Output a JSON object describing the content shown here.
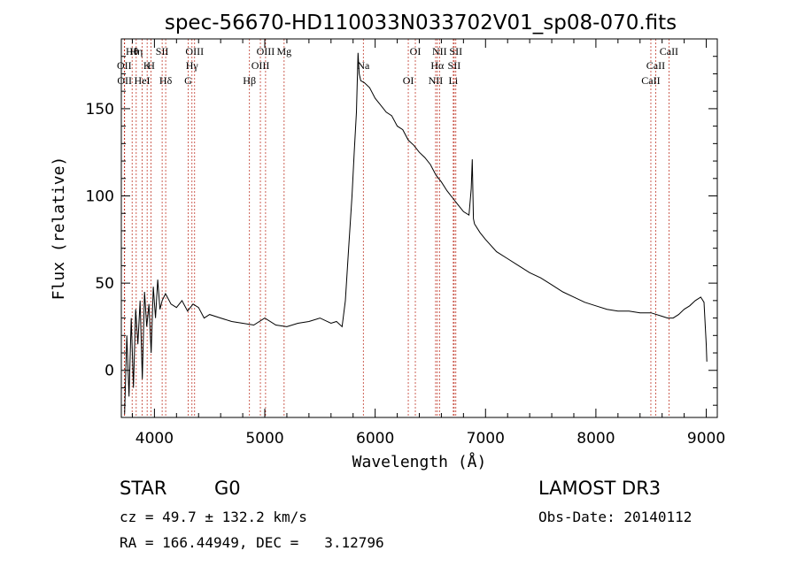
{
  "chart_data": {
    "type": "line",
    "title": "spec-56670-HD110033N033702V01_sp08-070.fits",
    "xlabel": "Wavelength (Å)",
    "ylabel": "Flux (relative)",
    "xlim": [
      3700,
      9100
    ],
    "ylim": [
      -27,
      190
    ],
    "x_ticks": [
      4000,
      5000,
      6000,
      7000,
      8000,
      9000
    ],
    "y_ticks": [
      0,
      50,
      100,
      150
    ],
    "series": [
      {
        "name": "flux",
        "x": [
          3730,
          3750,
          3770,
          3790,
          3810,
          3830,
          3850,
          3870,
          3890,
          3910,
          3930,
          3950,
          3970,
          3990,
          4010,
          4030,
          4050,
          4070,
          4100,
          4150,
          4200,
          4250,
          4300,
          4350,
          4400,
          4450,
          4500,
          4600,
          4700,
          4800,
          4900,
          5000,
          5100,
          5200,
          5300,
          5400,
          5500,
          5600,
          5650,
          5700,
          5730,
          5760,
          5790,
          5810,
          5830,
          5845,
          5855,
          5870,
          5900,
          5950,
          6000,
          6050,
          6100,
          6150,
          6200,
          6250,
          6300,
          6350,
          6400,
          6450,
          6500,
          6550,
          6600,
          6650,
          6700,
          6750,
          6800,
          6850,
          6870,
          6880,
          6890,
          6900,
          6950,
          7000,
          7100,
          7200,
          7300,
          7400,
          7500,
          7600,
          7700,
          7800,
          7900,
          8000,
          8100,
          8200,
          8300,
          8400,
          8500,
          8600,
          8650,
          8700,
          8750,
          8800,
          8850,
          8900,
          8950,
          8980,
          9000,
          9005
        ],
        "y": [
          -25,
          20,
          -15,
          30,
          -10,
          35,
          15,
          40,
          -5,
          45,
          25,
          38,
          10,
          48,
          30,
          52,
          35,
          40,
          44,
          38,
          36,
          40,
          34,
          38,
          36,
          30,
          32,
          30,
          28,
          27,
          26,
          30,
          26,
          25,
          27,
          28,
          30,
          27,
          28,
          25,
          40,
          70,
          100,
          125,
          148,
          182,
          170,
          166,
          165,
          162,
          156,
          152,
          148,
          146,
          140,
          138,
          132,
          129,
          125,
          122,
          118,
          112,
          108,
          103,
          99,
          95,
          91,
          89,
          104,
          121,
          87,
          84,
          79,
          75,
          68,
          64,
          60,
          56,
          53,
          49,
          45,
          42,
          39,
          37,
          35,
          34,
          34,
          33,
          33,
          31,
          30,
          30,
          32,
          35,
          37,
          40,
          42,
          39,
          15,
          5
        ]
      }
    ],
    "annotations": [
      {
        "label": "Hθ",
        "x": 3798
      },
      {
        "label": "K",
        "x": 3934
      },
      {
        "label": "Hδ",
        "x": 4102
      },
      {
        "label": "OIII",
        "x": 4364
      },
      {
        "label": "OII",
        "x": 3727
      },
      {
        "label": "HeI",
        "x": 3889
      },
      {
        "label": "SII",
        "x": 4070
      },
      {
        "label": "Hγ",
        "x": 4340
      },
      {
        "label": "OII",
        "x": 3730
      },
      {
        "label": "Hη",
        "x": 3835
      },
      {
        "label": "H",
        "x": 3969
      },
      {
        "label": "G",
        "x": 4305
      },
      {
        "label": "OIII",
        "x": 5007
      },
      {
        "label": "OIII",
        "x": 4960
      },
      {
        "label": "Hβ",
        "x": 4861
      },
      {
        "label": "Mg",
        "x": 5175
      },
      {
        "label": "Na",
        "x": 5893
      },
      {
        "label": "OI",
        "x": 6300
      },
      {
        "label": "OI",
        "x": 6364
      },
      {
        "label": "Hα",
        "x": 6563
      },
      {
        "label": "NII",
        "x": 6548
      },
      {
        "label": "NII",
        "x": 6583
      },
      {
        "label": "SII",
        "x": 6716
      },
      {
        "label": "Li",
        "x": 6708
      },
      {
        "label": "SII",
        "x": 6731
      },
      {
        "label": "CaII",
        "x": 8542
      },
      {
        "label": "CaII",
        "x": 8498
      },
      {
        "label": "CaII",
        "x": 8662
      }
    ]
  },
  "info": {
    "object_class": "STAR",
    "subclass": "G0",
    "survey": "LAMOST DR3",
    "cz": "cz = 49.7 ± 132.2 km/s",
    "obs_date": "Obs-Date: 20140112",
    "coords": "RA = 166.44949, DEC =   3.12796"
  },
  "colors": {
    "spectrum": "#000000",
    "line_marker": "#c0392b",
    "axes": "#000000"
  }
}
